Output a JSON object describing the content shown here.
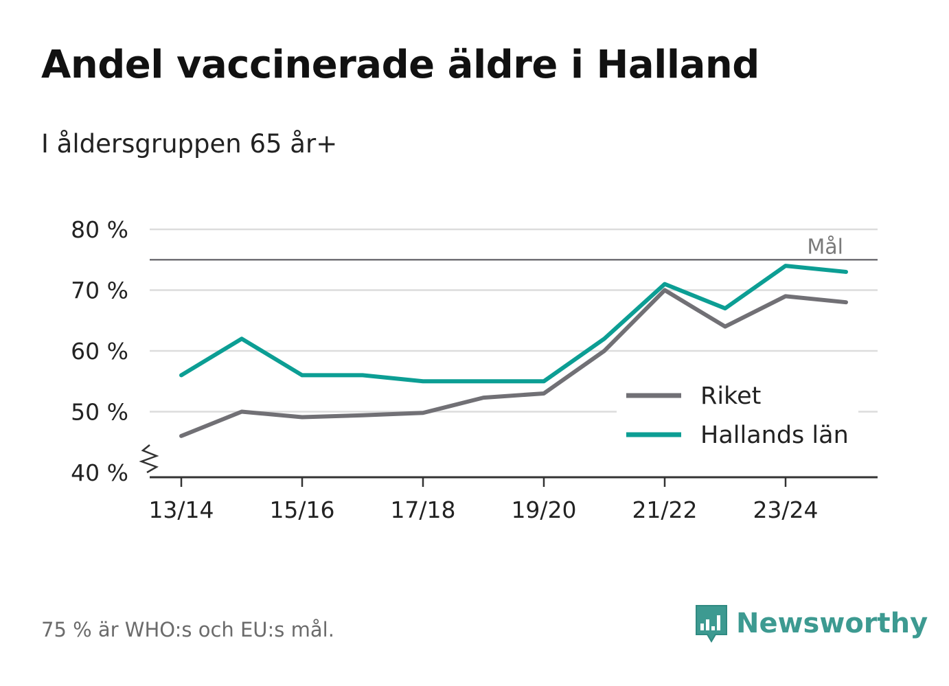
{
  "chart_data": {
    "type": "line",
    "title": "Andel vaccinerade äldre i Halland",
    "subtitle": "I åldersgruppen 65 år+",
    "x": [
      "13/14",
      "14/15",
      "15/16",
      "16/17",
      "17/18",
      "18/19",
      "19/20",
      "20/21",
      "21/22",
      "22/23",
      "23/24",
      "24/25"
    ],
    "x_tick_labels": [
      "13/14",
      "15/16",
      "17/18",
      "19/20",
      "21/22",
      "23/24"
    ],
    "y_tick_labels": [
      "40 %",
      "50 %",
      "60 %",
      "70 %",
      "80 %"
    ],
    "y_ticks": [
      40,
      50,
      60,
      70,
      80
    ],
    "ylim": [
      40,
      80
    ],
    "y_axis_break": true,
    "grid": true,
    "series": [
      {
        "name": "Riket",
        "color": "#717075",
        "values": [
          46,
          50,
          49.1,
          49.4,
          49.8,
          52.3,
          53,
          60,
          70,
          64,
          69,
          68
        ]
      },
      {
        "name": "Hallands län",
        "color": "#0c9e94",
        "values": [
          56,
          62,
          56,
          56,
          55,
          55,
          55,
          62,
          71,
          67,
          74,
          73
        ]
      }
    ],
    "reference_line": {
      "value": 75,
      "label": "Mål",
      "color": "#717075"
    },
    "legend_placement": "bottom-right"
  },
  "footnote": "75 % är WHO:s och EU:s mål.",
  "brand": {
    "name": "Newsworthy",
    "icon": "bar-chart-speech-bubble-icon",
    "color": "#3d9a91"
  }
}
